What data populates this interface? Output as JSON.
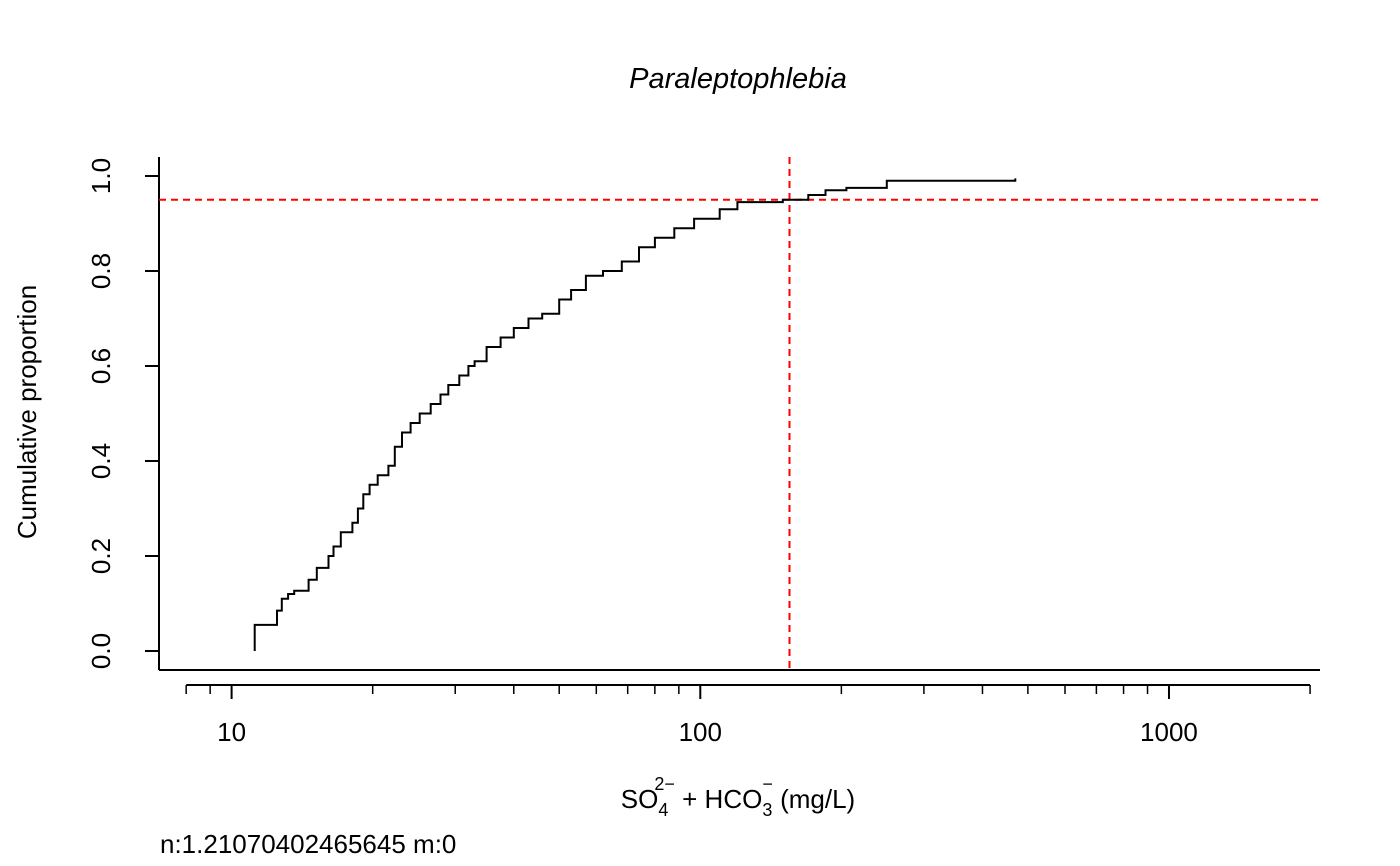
{
  "chart_data": {
    "type": "line",
    "subtype": "empirical-cumulative-distribution",
    "title": "Paraleptophlebia",
    "xlabel": {
      "base1": "SO",
      "sub1": "4",
      "sup1": "2−",
      "mid": " + HCO",
      "sub2": "3",
      "sup2": "−",
      "tail": " (mg/L)"
    },
    "ylabel": "Cumulative proportion",
    "x_scale": "log",
    "xlim": [
      7,
      2100
    ],
    "ylim": [
      0,
      1
    ],
    "x_ticks_major": [
      10,
      100,
      1000
    ],
    "x_tick_labels": [
      "10",
      "100",
      "1000"
    ],
    "x_ticks_minor": [
      8,
      9,
      20,
      30,
      40,
      50,
      60,
      70,
      80,
      90,
      200,
      300,
      400,
      500,
      600,
      700,
      800,
      900,
      2000
    ],
    "y_ticks": [
      0.0,
      0.2,
      0.4,
      0.6,
      0.8,
      1.0
    ],
    "y_tick_labels": [
      "0.0",
      "0.2",
      "0.4",
      "0.6",
      "0.8",
      "1.0"
    ],
    "grid": false,
    "series": [
      {
        "color": "#000000",
        "points": [
          [
            11.2,
            0.0
          ],
          [
            11.2,
            0.055
          ],
          [
            12.3,
            0.055
          ],
          [
            12.5,
            0.085
          ],
          [
            12.8,
            0.11
          ],
          [
            13.2,
            0.12
          ],
          [
            13.6,
            0.127
          ],
          [
            14.6,
            0.15
          ],
          [
            15.2,
            0.175
          ],
          [
            16.1,
            0.2
          ],
          [
            16.5,
            0.22
          ],
          [
            17.1,
            0.25
          ],
          [
            18.1,
            0.27
          ],
          [
            18.6,
            0.3
          ],
          [
            19.1,
            0.33
          ],
          [
            19.7,
            0.35
          ],
          [
            20.5,
            0.37
          ],
          [
            21.6,
            0.39
          ],
          [
            22.3,
            0.43
          ],
          [
            23.1,
            0.46
          ],
          [
            24.1,
            0.48
          ],
          [
            25.2,
            0.5
          ],
          [
            26.6,
            0.52
          ],
          [
            27.9,
            0.54
          ],
          [
            29.0,
            0.56
          ],
          [
            30.6,
            0.58
          ],
          [
            32.0,
            0.6
          ],
          [
            33.0,
            0.61
          ],
          [
            35.0,
            0.64
          ],
          [
            37.5,
            0.66
          ],
          [
            40.0,
            0.68
          ],
          [
            43.0,
            0.7
          ],
          [
            46.0,
            0.71
          ],
          [
            50.0,
            0.74
          ],
          [
            53.0,
            0.76
          ],
          [
            57.0,
            0.79
          ],
          [
            62.0,
            0.8
          ],
          [
            68.0,
            0.82
          ],
          [
            74.0,
            0.85
          ],
          [
            80.0,
            0.87
          ],
          [
            88.0,
            0.89
          ],
          [
            97.0,
            0.91
          ],
          [
            110.0,
            0.93
          ],
          [
            120.0,
            0.945
          ],
          [
            150.0,
            0.95
          ],
          [
            170.0,
            0.96
          ],
          [
            185.0,
            0.97
          ],
          [
            205.0,
            0.975
          ],
          [
            250.0,
            0.99
          ],
          [
            470.0,
            0.995
          ]
        ]
      }
    ],
    "reference_lines": [
      {
        "orientation": "vertical",
        "x": 155,
        "color": "#ff0000",
        "style": "dashed"
      },
      {
        "orientation": "horizontal",
        "y": 0.95,
        "color": "#ff0000",
        "style": "dashed"
      }
    ],
    "annotation": "n:1.21070402465645 m:0"
  }
}
